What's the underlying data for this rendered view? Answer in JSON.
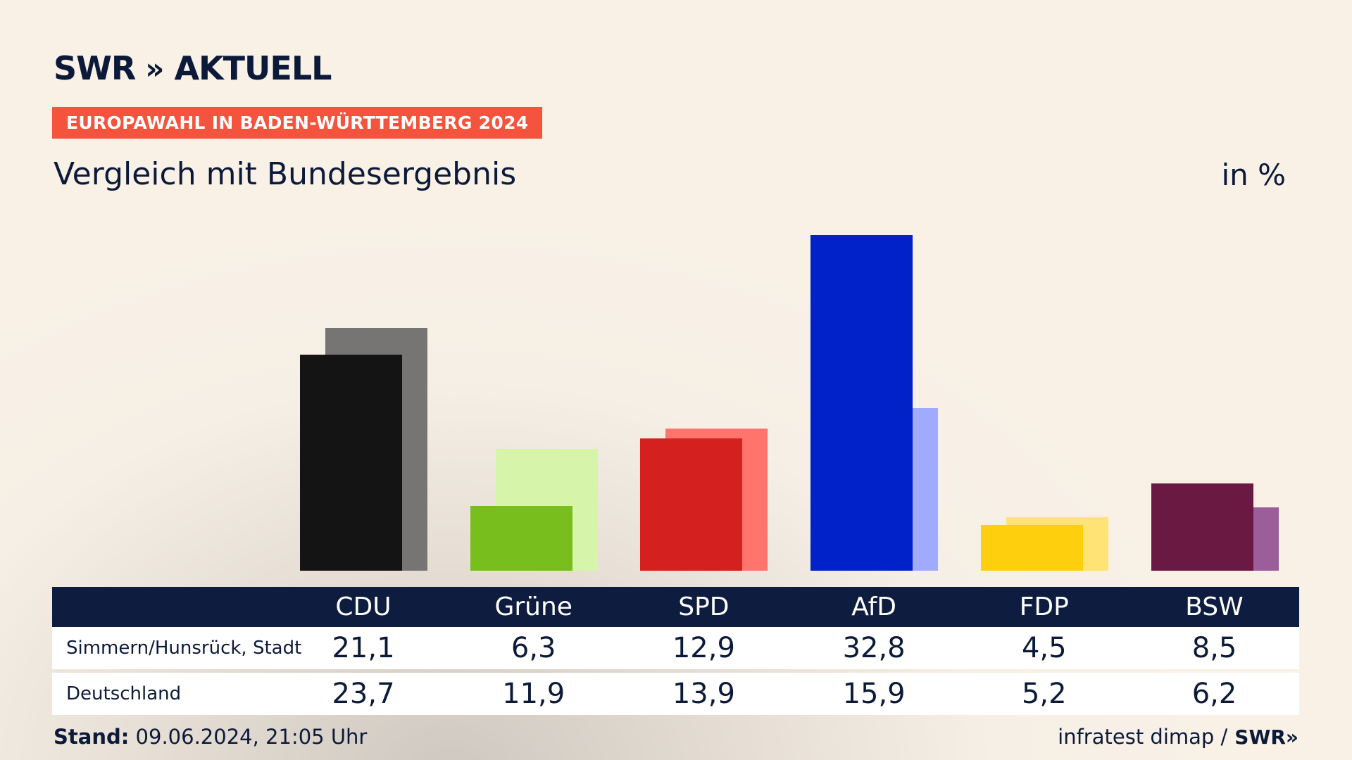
{
  "header": {
    "logo_swr": "SWR",
    "logo_chevrons": "»",
    "logo_aktuell": "AKTUELL",
    "badge": "EUROPAWAHL IN BADEN-WÜRTTEMBERG 2024",
    "subtitle": "Vergleich mit Bundesergebnis",
    "unit": "in %"
  },
  "chart_data": {
    "type": "bar",
    "categories": [
      "CDU",
      "Grüne",
      "SPD",
      "AfD",
      "FDP",
      "BSW"
    ],
    "series": [
      {
        "name": "Simmern/Hunsrück, Stadt",
        "values": [
          21.1,
          6.3,
          12.9,
          32.8,
          4.5,
          8.5
        ],
        "colors": [
          "#141414",
          "#78be1d",
          "#d52020",
          "#0022c8",
          "#fdcf0c",
          "#6a1942"
        ]
      },
      {
        "name": "Deutschland",
        "values": [
          23.7,
          11.9,
          13.9,
          15.9,
          5.2,
          6.2
        ],
        "colors": [
          "#777573",
          "#d6f5aa",
          "#ff756e",
          "#a0abff",
          "#ffe374",
          "#9b5e9b"
        ]
      }
    ],
    "ylim": [
      0,
      33
    ],
    "value_labels": {
      "row1": [
        "21,1",
        "6,3",
        "12,9",
        "32,8",
        "4,5",
        "8,5"
      ],
      "row2": [
        "23,7",
        "11,9",
        "13,9",
        "15,9",
        "5,2",
        "6,2"
      ]
    }
  },
  "table": {
    "row1_label": "Simmern/Hunsrück, Stadt",
    "row2_label": "Deutschland"
  },
  "footer": {
    "stand_label": "Stand:",
    "stand_value": "09.06.2024, 21:05 Uhr",
    "source": "infratest dimap /",
    "source_logo": "SWR»"
  }
}
